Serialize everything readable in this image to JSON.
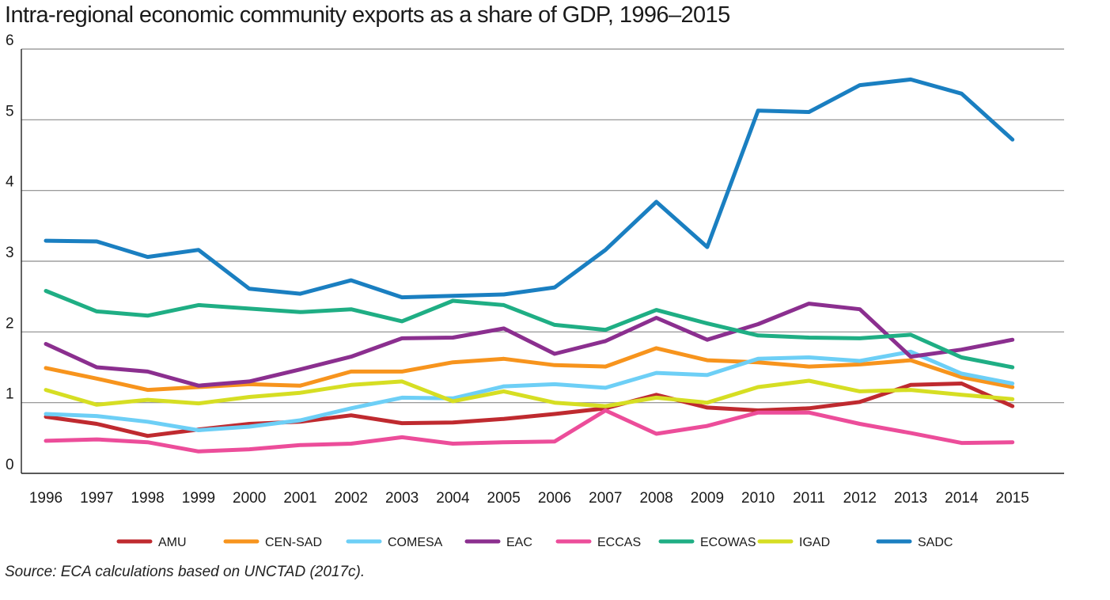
{
  "chart_data": {
    "type": "line",
    "title": "Intra-regional economic community exports as a share of GDP, 1996–2015",
    "xlabel": "",
    "ylabel": "",
    "ylim": [
      0,
      6
    ],
    "yticks": [
      "0",
      "1",
      "2",
      "3",
      "4",
      "5",
      "6"
    ],
    "grid": "horizontal",
    "legend_position": "bottom",
    "x": [
      "1996",
      "1997",
      "1998",
      "1999",
      "2000",
      "2001",
      "2002",
      "2003",
      "2004",
      "2005",
      "2006",
      "2007",
      "2008",
      "2009",
      "2010",
      "2011",
      "2012",
      "2013",
      "2014",
      "2015"
    ],
    "series": [
      {
        "name": "AMU",
        "color": "#bf2a2f",
        "values": [
          0.8,
          0.7,
          0.53,
          0.62,
          0.7,
          0.73,
          0.82,
          0.71,
          0.72,
          0.77,
          0.84,
          0.92,
          1.11,
          0.93,
          0.89,
          0.92,
          1.01,
          1.25,
          1.27,
          0.95
        ]
      },
      {
        "name": "CEN-SAD",
        "color": "#f7941d",
        "values": [
          1.49,
          1.34,
          1.18,
          1.22,
          1.26,
          1.24,
          1.44,
          1.44,
          1.57,
          1.62,
          1.53,
          1.51,
          1.77,
          1.6,
          1.57,
          1.51,
          1.54,
          1.6,
          1.36,
          1.22
        ]
      },
      {
        "name": "COMESA",
        "color": "#6dcff6",
        "values": [
          0.84,
          0.81,
          0.73,
          0.61,
          0.66,
          0.75,
          0.92,
          1.07,
          1.06,
          1.23,
          1.26,
          1.21,
          1.42,
          1.39,
          1.62,
          1.64,
          1.59,
          1.72,
          1.41,
          1.27
        ]
      },
      {
        "name": "EAC",
        "color": "#8b2f8f",
        "values": [
          1.83,
          1.5,
          1.44,
          1.24,
          1.3,
          1.47,
          1.65,
          1.91,
          1.92,
          2.05,
          1.69,
          1.87,
          2.2,
          1.89,
          2.11,
          2.4,
          2.32,
          1.65,
          1.75,
          1.89
        ]
      },
      {
        "name": "ECCAS",
        "color": "#ec4d9a",
        "values": [
          0.46,
          0.48,
          0.44,
          0.31,
          0.34,
          0.4,
          0.42,
          0.51,
          0.42,
          0.44,
          0.45,
          0.89,
          0.56,
          0.67,
          0.86,
          0.86,
          0.7,
          0.57,
          0.43,
          0.44
        ]
      },
      {
        "name": "ECOWAS",
        "color": "#1fae84",
        "values": [
          2.58,
          2.29,
          2.23,
          2.38,
          2.33,
          2.28,
          2.32,
          2.15,
          2.44,
          2.38,
          2.1,
          2.03,
          2.31,
          2.12,
          1.95,
          1.92,
          1.91,
          1.96,
          1.64,
          1.5
        ]
      },
      {
        "name": "IGAD",
        "color": "#d6de23",
        "values": [
          1.18,
          0.97,
          1.04,
          0.99,
          1.08,
          1.14,
          1.25,
          1.3,
          1.02,
          1.16,
          1.0,
          0.95,
          1.07,
          1.0,
          1.22,
          1.31,
          1.16,
          1.18,
          1.11,
          1.05
        ]
      },
      {
        "name": "SADC",
        "color": "#1a7fc1",
        "values": [
          3.29,
          3.28,
          3.06,
          3.16,
          2.61,
          2.54,
          2.73,
          2.49,
          2.51,
          2.53,
          2.63,
          3.16,
          3.84,
          3.2,
          5.13,
          5.11,
          5.49,
          5.57,
          5.37,
          4.72
        ]
      }
    ]
  },
  "source_note": "Source: ECA calculations based on UNCTAD (2017c)."
}
